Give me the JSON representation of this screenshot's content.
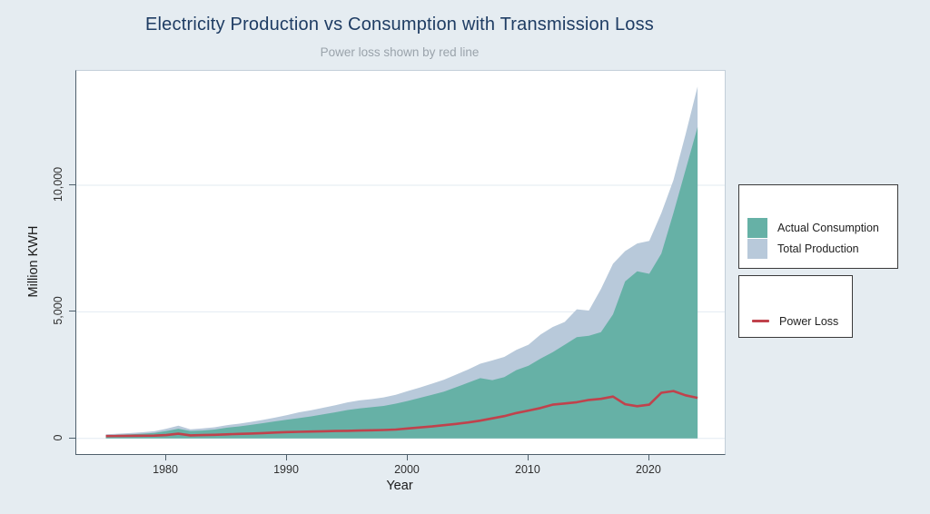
{
  "colors": {
    "background": "#e5ecf1",
    "title": "#1e3c63",
    "subtitle": "#9aa3ab",
    "consumption_fill": "#66b1a6",
    "production_fill": "#b8c9da",
    "loss_line": "#c0424c",
    "gridline": "#e2ebf2",
    "axis": "#4f606c"
  },
  "chart_data": {
    "type": "area",
    "title": "Electricity Production vs Consumption with Transmission Loss",
    "subtitle": "Power loss shown by red line",
    "xlabel": "Year",
    "ylabel": "Million KWH",
    "xlim": [
      1972.55,
      2026.25
    ],
    "ylim": [
      -620,
      14520
    ],
    "grid": "horizontal",
    "x": [
      1975,
      1976,
      1977,
      1978,
      1979,
      1980,
      1981,
      1982,
      1983,
      1984,
      1985,
      1986,
      1987,
      1988,
      1989,
      1990,
      1991,
      1992,
      1993,
      1994,
      1995,
      1996,
      1997,
      1998,
      1999,
      2000,
      2001,
      2002,
      2003,
      2004,
      2005,
      2006,
      2007,
      2008,
      2009,
      2010,
      2011,
      2012,
      2013,
      2014,
      2015,
      2016,
      2017,
      2018,
      2019,
      2020,
      2021,
      2022,
      2023,
      2024
    ],
    "series": [
      {
        "name": "Total Production",
        "type": "area",
        "color": "#b8c9da",
        "values": [
          160,
          185,
          210,
          240,
          280,
          380,
          500,
          360,
          390,
          440,
          520,
          580,
          650,
          730,
          820,
          920,
          1030,
          1110,
          1210,
          1310,
          1420,
          1500,
          1550,
          1620,
          1720,
          1870,
          2010,
          2160,
          2320,
          2520,
          2720,
          2950,
          3080,
          3220,
          3500,
          3700,
          4100,
          4400,
          4600,
          5100,
          5050,
          5900,
          6900,
          7400,
          7700,
          7800,
          8900,
          10200,
          12000,
          13900
        ]
      },
      {
        "name": "Actual Consumption",
        "type": "area",
        "color": "#66b1a6",
        "values": [
          120,
          140,
          160,
          185,
          215,
          290,
          380,
          290,
          310,
          350,
          420,
          470,
          530,
          600,
          670,
          740,
          800,
          870,
          950,
          1030,
          1120,
          1180,
          1230,
          1280,
          1370,
          1480,
          1600,
          1720,
          1850,
          2020,
          2200,
          2380,
          2300,
          2420,
          2700,
          2870,
          3150,
          3400,
          3700,
          4000,
          4050,
          4200,
          4900,
          6200,
          6600,
          6500,
          7300,
          8900,
          10600,
          12300
        ]
      },
      {
        "name": "Power Loss",
        "type": "line",
        "color": "#c0424c",
        "values": [
          90,
          95,
          100,
          105,
          110,
          130,
          185,
          120,
          130,
          140,
          160,
          175,
          190,
          210,
          230,
          250,
          260,
          270,
          280,
          290,
          300,
          310,
          320,
          330,
          350,
          390,
          430,
          470,
          520,
          570,
          630,
          700,
          790,
          880,
          1000,
          1100,
          1200,
          1330,
          1380,
          1430,
          1520,
          1560,
          1650,
          1350,
          1270,
          1330,
          1800,
          1870,
          1700,
          1600
        ]
      }
    ],
    "yticks": [
      {
        "value": 0,
        "label": "0"
      },
      {
        "value": 5000,
        "label": "5,000"
      },
      {
        "value": 10000,
        "label": "10,000"
      }
    ],
    "xticks": [
      {
        "value": 1980,
        "label": "1980"
      },
      {
        "value": 1990,
        "label": "1990"
      },
      {
        "value": 2000,
        "label": "2000"
      },
      {
        "value": 2010,
        "label": "2010"
      },
      {
        "value": 2020,
        "label": "2020"
      }
    ],
    "legend": {
      "areas": [
        {
          "label": "Actual Consumption",
          "color": "#66b1a6"
        },
        {
          "label": "Total Production",
          "color": "#b8c9da"
        }
      ],
      "line": {
        "label": "Power Loss",
        "color": "#c0424c"
      },
      "position": "right-outside"
    }
  }
}
